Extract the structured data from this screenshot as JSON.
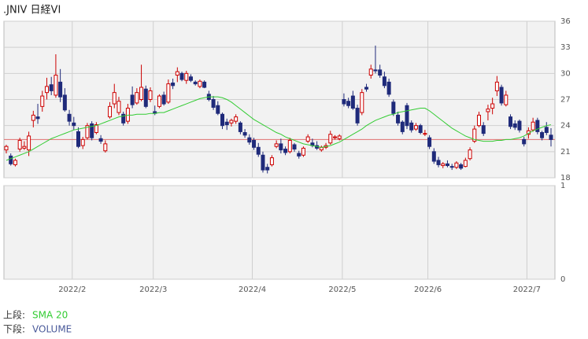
{
  "chart_data": {
    "type": "candlestick",
    "title": ".JNIV 日経VI",
    "categories": [
      null,
      null,
      null,
      null,
      null,
      null,
      null,
      null,
      null,
      null,
      null,
      null,
      null,
      null,
      null,
      "2022/2",
      null,
      null,
      null,
      null,
      null,
      null,
      null,
      null,
      null,
      null,
      null,
      null,
      null,
      null,
      null,
      null,
      null,
      "2022/3",
      null,
      null,
      null,
      null,
      null,
      null,
      null,
      null,
      null,
      null,
      null,
      null,
      null,
      null,
      null,
      null,
      null,
      null,
      null,
      null,
      null,
      "2022/4",
      null,
      null,
      null,
      null,
      null,
      null,
      null,
      null,
      null,
      null,
      null,
      null,
      null,
      null,
      null,
      null,
      null,
      null,
      null,
      "2022/5",
      null,
      null,
      null,
      null,
      null,
      null,
      null,
      null,
      null,
      null,
      null,
      null,
      null,
      null,
      null,
      null,
      null,
      null,
      "2022/6",
      null,
      null,
      null,
      null,
      null,
      null,
      null,
      null,
      null,
      null,
      null,
      null,
      null,
      null,
      null,
      null,
      null,
      null,
      null,
      null,
      null,
      "2022/7",
      null,
      null,
      null,
      null,
      null
    ],
    "ohlc": [
      [
        21.2,
        21.8,
        20.8,
        21.6
      ],
      [
        20.5,
        20.8,
        19.4,
        19.6
      ],
      [
        19.5,
        20.2,
        19.3,
        20.0
      ],
      [
        21.3,
        22.6,
        21.0,
        22.3
      ],
      [
        21.4,
        22.2,
        21.2,
        21.6
      ],
      [
        21.2,
        23.3,
        20.5,
        22.8
      ],
      [
        24.6,
        25.7,
        23.8,
        25.2
      ],
      [
        25.0,
        26.5,
        24.2,
        24.8
      ],
      [
        26.2,
        28.0,
        25.6,
        27.4
      ],
      [
        27.8,
        29.5,
        27.0,
        28.5
      ],
      [
        28.7,
        29.6,
        27.5,
        28.0
      ],
      [
        27.5,
        32.2,
        27.2,
        29.8
      ],
      [
        29.0,
        30.5,
        26.7,
        27.3
      ],
      [
        27.5,
        28.3,
        25.6,
        25.8
      ],
      [
        25.3,
        25.8,
        24.0,
        24.5
      ],
      [
        24.3,
        25.0,
        23.5,
        24.0
      ],
      [
        23.3,
        23.8,
        21.4,
        21.6
      ],
      [
        21.7,
        22.7,
        21.3,
        22.4
      ],
      [
        22.6,
        24.3,
        22.4,
        24.0
      ],
      [
        24.2,
        24.5,
        22.3,
        22.6
      ],
      [
        23.2,
        24.4,
        23.0,
        24.1
      ],
      [
        22.5,
        22.9,
        21.9,
        22.2
      ],
      [
        21.1,
        22.3,
        20.9,
        21.9
      ],
      [
        25.0,
        26.7,
        24.8,
        26.2
      ],
      [
        26.5,
        28.8,
        26.0,
        27.8
      ],
      [
        25.5,
        27.3,
        25.2,
        26.8
      ],
      [
        25.3,
        25.6,
        24.0,
        24.3
      ],
      [
        24.5,
        26.5,
        24.2,
        26.0
      ],
      [
        27.5,
        28.5,
        26.0,
        26.4
      ],
      [
        26.6,
        28.3,
        26.4,
        27.8
      ],
      [
        27.0,
        31.0,
        26.8,
        28.4
      ],
      [
        28.2,
        28.6,
        26.0,
        26.2
      ],
      [
        27.0,
        28.4,
        26.7,
        28.0
      ],
      [
        25.6,
        26.3,
        25.2,
        25.4
      ],
      [
        26.2,
        27.6,
        26.0,
        27.4
      ],
      [
        27.5,
        27.9,
        26.3,
        26.5
      ],
      [
        26.7,
        29.3,
        26.5,
        28.8
      ],
      [
        28.9,
        29.4,
        28.2,
        28.6
      ],
      [
        29.8,
        30.7,
        29.0,
        30.2
      ],
      [
        30.0,
        30.2,
        29.1,
        29.3
      ],
      [
        29.2,
        30.3,
        28.8,
        30.0
      ],
      [
        29.6,
        29.9,
        29.0,
        29.2
      ],
      [
        29.0,
        29.2,
        28.6,
        28.8
      ],
      [
        28.5,
        29.3,
        28.3,
        29.1
      ],
      [
        29.0,
        29.2,
        28.3,
        28.4
      ],
      [
        27.6,
        28.0,
        26.8,
        27.0
      ],
      [
        27.0,
        27.4,
        25.8,
        26.1
      ],
      [
        26.3,
        26.8,
        25.2,
        25.4
      ],
      [
        25.3,
        25.5,
        23.6,
        24.0
      ],
      [
        24.4,
        24.8,
        23.5,
        24.1
      ],
      [
        24.3,
        24.8,
        23.9,
        24.6
      ],
      [
        24.5,
        25.3,
        24.2,
        25.0
      ],
      [
        24.3,
        24.5,
        23.0,
        23.3
      ],
      [
        23.2,
        23.6,
        22.6,
        22.9
      ],
      [
        22.6,
        23.0,
        21.8,
        22.1
      ],
      [
        22.3,
        22.6,
        21.2,
        21.5
      ],
      [
        21.5,
        22.0,
        20.4,
        20.7
      ],
      [
        20.6,
        21.0,
        18.6,
        18.9
      ],
      [
        19.2,
        19.6,
        18.5,
        18.9
      ],
      [
        19.5,
        20.6,
        19.3,
        20.3
      ],
      [
        21.6,
        22.3,
        21.4,
        21.9
      ],
      [
        21.9,
        22.5,
        20.8,
        21.2
      ],
      [
        21.3,
        21.6,
        20.6,
        20.9
      ],
      [
        21.0,
        22.6,
        20.8,
        22.3
      ],
      [
        21.8,
        22.0,
        21.0,
        21.3
      ],
      [
        20.8,
        21.1,
        20.2,
        20.5
      ],
      [
        20.6,
        21.6,
        20.4,
        21.4
      ],
      [
        22.2,
        23.0,
        22.0,
        22.7
      ],
      [
        22.0,
        22.5,
        21.5,
        21.7
      ],
      [
        21.7,
        22.2,
        21.2,
        21.4
      ],
      [
        21.2,
        21.7,
        21.0,
        21.5
      ],
      [
        21.5,
        22.0,
        21.3,
        21.7
      ],
      [
        22.0,
        23.4,
        21.8,
        23.0
      ],
      [
        22.6,
        22.9,
        22.4,
        22.7
      ],
      [
        22.5,
        23.0,
        22.3,
        22.8
      ],
      [
        27.0,
        27.7,
        26.2,
        26.5
      ],
      [
        26.8,
        27.2,
        26.0,
        26.3
      ],
      [
        27.4,
        28.0,
        25.8,
        26.0
      ],
      [
        26.0,
        26.4,
        24.0,
        24.3
      ],
      [
        25.5,
        28.2,
        25.2,
        27.8
      ],
      [
        28.4,
        28.8,
        27.9,
        28.2
      ],
      [
        29.8,
        31.0,
        29.4,
        30.5
      ],
      [
        30.4,
        33.2,
        30.0,
        30.3
      ],
      [
        30.4,
        31.0,
        29.5,
        29.8
      ],
      [
        29.6,
        30.2,
        28.3,
        28.6
      ],
      [
        29.0,
        29.4,
        27.3,
        27.6
      ],
      [
        26.7,
        27.0,
        25.1,
        25.4
      ],
      [
        25.2,
        25.6,
        24.0,
        24.3
      ],
      [
        24.4,
        24.6,
        23.0,
        23.3
      ],
      [
        26.3,
        26.6,
        23.6,
        24.0
      ],
      [
        24.3,
        24.6,
        23.2,
        23.5
      ],
      [
        23.6,
        24.3,
        23.4,
        24.0
      ],
      [
        24.0,
        24.2,
        23.0,
        23.2
      ],
      [
        23.0,
        23.5,
        22.8,
        23.1
      ],
      [
        22.6,
        22.9,
        21.3,
        21.6
      ],
      [
        21.0,
        21.4,
        19.6,
        19.9
      ],
      [
        20.0,
        20.4,
        19.2,
        19.5
      ],
      [
        19.4,
        19.8,
        19.1,
        19.6
      ],
      [
        19.6,
        20.0,
        19.2,
        19.4
      ],
      [
        19.3,
        19.6,
        18.9,
        19.2
      ],
      [
        19.2,
        19.9,
        19.0,
        19.7
      ],
      [
        19.5,
        19.7,
        18.9,
        19.1
      ],
      [
        19.3,
        20.3,
        19.2,
        20.0
      ],
      [
        20.2,
        21.5,
        20.0,
        21.2
      ],
      [
        22.2,
        24.0,
        22.0,
        23.6
      ],
      [
        24.0,
        25.6,
        23.8,
        25.2
      ],
      [
        24.0,
        24.4,
        22.8,
        23.1
      ],
      [
        25.6,
        26.4,
        24.6,
        25.9
      ],
      [
        26.0,
        27.2,
        25.3,
        26.5
      ],
      [
        28.0,
        29.7,
        27.4,
        29.0
      ],
      [
        28.4,
        28.7,
        26.3,
        26.6
      ],
      [
        26.4,
        28.0,
        26.2,
        27.5
      ],
      [
        25.0,
        25.3,
        23.6,
        23.9
      ],
      [
        24.2,
        24.6,
        23.5,
        23.8
      ],
      [
        24.5,
        24.7,
        23.2,
        23.5
      ],
      [
        22.4,
        22.7,
        21.6,
        21.9
      ],
      [
        23.0,
        23.8,
        22.5,
        23.4
      ],
      [
        23.5,
        24.9,
        23.3,
        24.4
      ],
      [
        24.6,
        24.9,
        23.0,
        23.3
      ],
      [
        23.2,
        23.4,
        22.3,
        22.6
      ],
      [
        23.8,
        24.4,
        22.9,
        23.2
      ],
      [
        22.9,
        23.7,
        21.6,
        22.4
      ]
    ],
    "up_color": "#cc0000",
    "down_color": "#1f2a7a",
    "ylim": [
      18,
      36
    ],
    "yticks": [
      18,
      21,
      24,
      27,
      30,
      33,
      36
    ],
    "grid": true,
    "series": [
      {
        "name": "SMA 20",
        "color": "#33cc33",
        "values": [
          20.0,
          20.2,
          20.4,
          20.6,
          20.8,
          21.0,
          21.3,
          21.6,
          21.9,
          22.2,
          22.5,
          22.7,
          22.9,
          23.1,
          23.3,
          23.5,
          23.6,
          23.7,
          23.8,
          23.9,
          24.0,
          24.2,
          24.4,
          24.6,
          24.8,
          25.0,
          25.1,
          25.2,
          25.2,
          25.3,
          25.3,
          25.3,
          25.4,
          25.4,
          25.5,
          25.5,
          25.7,
          25.9,
          26.1,
          26.3,
          26.5,
          26.7,
          26.9,
          27.1,
          27.2,
          27.3,
          27.3,
          27.3,
          27.2,
          27.0,
          26.7,
          26.3,
          25.9,
          25.5,
          25.1,
          24.7,
          24.4,
          24.1,
          23.8,
          23.5,
          23.2,
          23.0,
          22.7,
          22.5,
          22.3,
          22.1,
          21.9,
          21.8,
          21.7,
          21.6,
          21.5,
          21.6,
          21.7,
          21.9,
          22.1,
          22.4,
          22.7,
          23.0,
          23.3,
          23.6,
          24.0,
          24.3,
          24.6,
          24.8,
          25.0,
          25.2,
          25.3,
          25.5,
          25.6,
          25.7,
          25.8,
          25.9,
          26.0,
          26.0,
          25.7,
          25.3,
          24.9,
          24.5,
          24.1,
          23.7,
          23.4,
          23.1,
          22.8,
          22.6,
          22.4,
          22.3,
          22.2,
          22.2,
          22.2,
          22.3,
          22.3,
          22.4,
          22.4,
          22.5,
          22.6,
          22.8,
          23.1,
          23.4,
          23.6,
          23.8,
          24.0,
          24.1
        ]
      }
    ],
    "reference_line": {
      "value": 22.4,
      "color": "#e07070"
    },
    "lower_panel": {
      "name": "VOLUME",
      "color": "#4a5a9a",
      "ylim": [
        0,
        1
      ],
      "yticks": [
        0,
        1
      ]
    },
    "legend_labels": [
      "上段:",
      "下段:"
    ]
  }
}
